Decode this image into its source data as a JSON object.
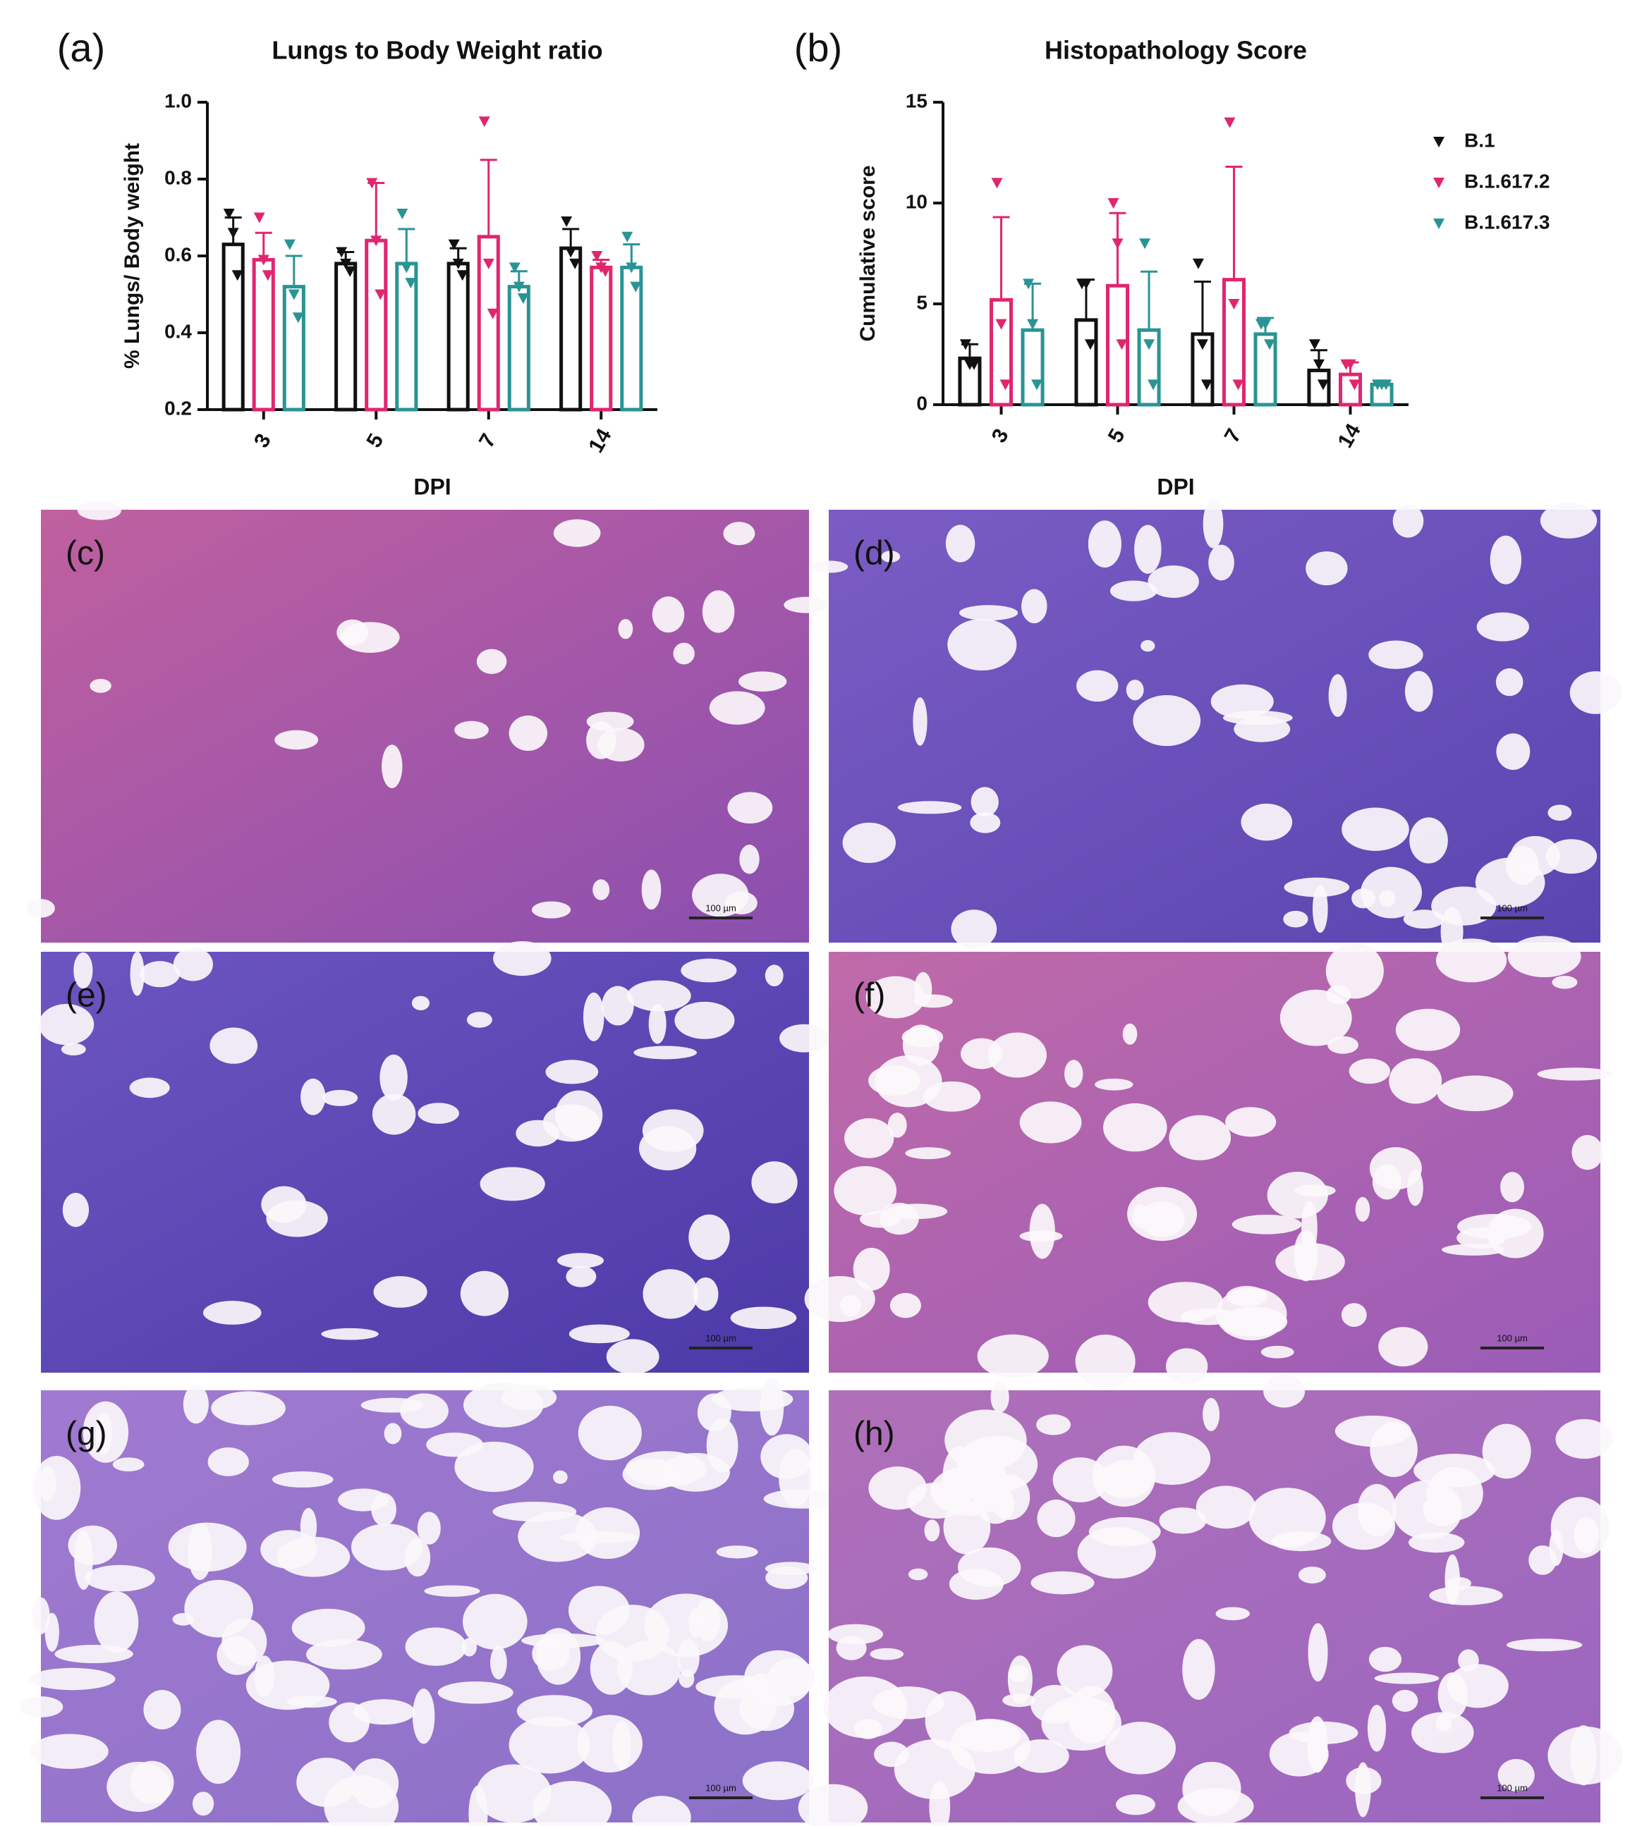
{
  "chart_data": [
    {
      "type": "bar",
      "label": "(a)",
      "title": "Lungs to Body Weight ratio",
      "x_label": "DPI",
      "y_label": "% Lungs/ Body weight",
      "categories": [
        "3",
        "5",
        "7",
        "14"
      ],
      "ylim": [
        0.2,
        1.0
      ],
      "yticks": [
        0.2,
        0.4,
        0.6,
        0.8,
        {
          "value": 1.0,
          "label": "1.0"
        }
      ],
      "series": [
        {
          "name": "B.1",
          "color": "#111111",
          "values": [
            0.63,
            0.58,
            0.58,
            0.62
          ],
          "errors": [
            0.07,
            0.03,
            0.04,
            0.05
          ],
          "points": [
            [
              0.71,
              0.66,
              0.55
            ],
            [
              0.61,
              0.58,
              0.56
            ],
            [
              0.63,
              0.58,
              0.55
            ],
            [
              0.69,
              0.61,
              0.58
            ]
          ]
        },
        {
          "name": "B.1.617.2",
          "color": "#e0266f",
          "values": [
            0.59,
            0.64,
            0.65,
            0.57
          ],
          "errors": [
            0.07,
            0.15,
            0.2,
            0.02
          ],
          "points": [
            [
              0.7,
              0.59,
              0.55
            ],
            [
              0.79,
              0.64,
              0.5
            ],
            [
              0.95,
              0.58,
              0.45
            ],
            [
              0.6,
              0.57,
              0.56
            ]
          ]
        },
        {
          "name": "B.1.617.3",
          "color": "#2a9494",
          "values": [
            0.52,
            0.58,
            0.52,
            0.57
          ],
          "errors": [
            0.08,
            0.09,
            0.04,
            0.06
          ],
          "points": [
            [
              0.63,
              0.5,
              0.44
            ],
            [
              0.71,
              0.57,
              0.53
            ],
            [
              0.57,
              0.52,
              0.49
            ],
            [
              0.65,
              0.57,
              0.52
            ]
          ]
        }
      ]
    },
    {
      "type": "bar",
      "label": "(b)",
      "title": "Histopathology Score",
      "x_label": "DPI",
      "y_label": "Cumulative score",
      "categories": [
        "3",
        "5",
        "7",
        "14"
      ],
      "ylim": [
        0,
        15
      ],
      "yticks": [
        0,
        5,
        10,
        15
      ],
      "legend": "top-right",
      "series": [
        {
          "name": "B.1",
          "color": "#111111",
          "values": [
            2.3,
            4.2,
            3.5,
            1.7
          ],
          "errors": [
            0.7,
            2.0,
            2.6,
            1.0
          ],
          "points": [
            [
              3,
              2,
              2
            ],
            [
              6,
              6,
              3
            ],
            [
              7,
              3,
              1
            ],
            [
              3,
              2,
              1
            ]
          ]
        },
        {
          "name": "B.1.617.2",
          "color": "#e0266f",
          "values": [
            5.2,
            5.9,
            6.2,
            1.5
          ],
          "errors": [
            4.1,
            3.6,
            5.6,
            0.6
          ],
          "points": [
            [
              11,
              4,
              1
            ],
            [
              10,
              8,
              3
            ],
            [
              14,
              5,
              1
            ],
            [
              2,
              2,
              1
            ]
          ]
        },
        {
          "name": "B.1.617.3",
          "color": "#2a9494",
          "values": [
            3.7,
            3.7,
            3.5,
            1.0
          ],
          "errors": [
            2.3,
            2.9,
            0.8,
            0.1
          ],
          "points": [
            [
              6,
              4,
              1
            ],
            [
              8,
              3,
              1
            ],
            [
              4,
              4,
              3
            ],
            [
              1,
              1,
              1
            ]
          ]
        }
      ]
    }
  ],
  "panels": [
    {
      "label": "(c)",
      "scale_label": "100 µm"
    },
    {
      "label": "(d)",
      "scale_label": "100 µm"
    },
    {
      "label": "(e)",
      "scale_label": "100 µm"
    },
    {
      "label": "(f)",
      "scale_label": "100 µm"
    },
    {
      "label": "(g)",
      "scale_label": "100 µm"
    },
    {
      "label": "(h)",
      "scale_label": "100 µm"
    }
  ]
}
